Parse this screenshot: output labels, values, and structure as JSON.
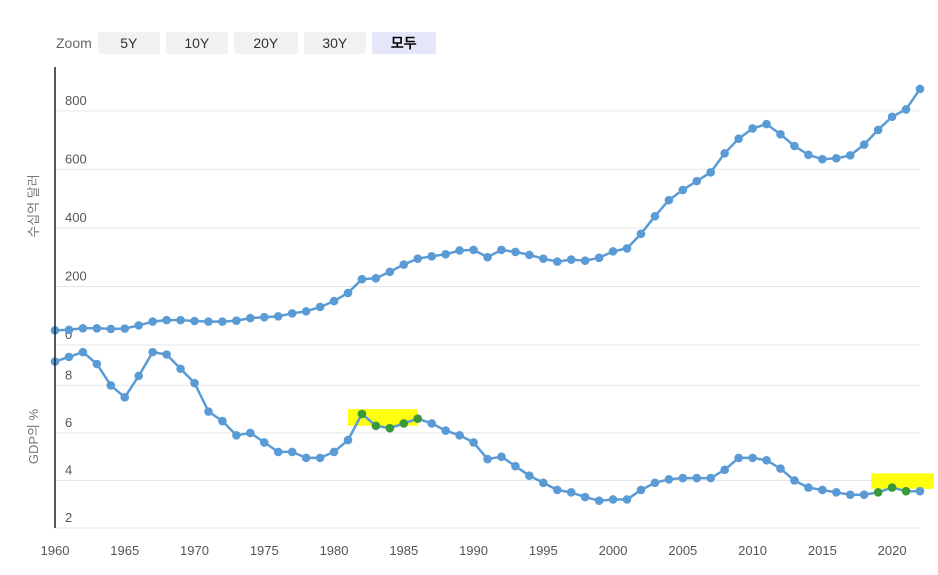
{
  "toolbar": {
    "zoom_label": "Zoom",
    "buttons": [
      "5Y",
      "10Y",
      "20Y",
      "30Y",
      "모두"
    ],
    "active": "모두"
  },
  "colors": {
    "series": "#5b9bd5",
    "highlight_point": "#3a9a3a",
    "highlight_fill": "#ffff00",
    "axis": "#222222",
    "grid": "#e6e6e6"
  },
  "chart_data": [
    {
      "type": "line",
      "ylabel": "수십억 달러",
      "ylim": [
        0,
        950
      ],
      "yticks": [
        0,
        200,
        400,
        600,
        800
      ],
      "grid": true,
      "x": [
        1960,
        1961,
        1962,
        1963,
        1964,
        1965,
        1966,
        1967,
        1968,
        1969,
        1970,
        1971,
        1972,
        1973,
        1974,
        1975,
        1976,
        1977,
        1978,
        1979,
        1980,
        1981,
        1982,
        1983,
        1984,
        1985,
        1986,
        1987,
        1988,
        1989,
        1990,
        1991,
        1992,
        1993,
        1994,
        1995,
        1996,
        1997,
        1998,
        1999,
        2000,
        2001,
        2002,
        2003,
        2004,
        2005,
        2006,
        2007,
        2008,
        2009,
        2010,
        2011,
        2012,
        2013,
        2014,
        2015,
        2016,
        2017,
        2018,
        2019,
        2020,
        2021,
        2022
      ],
      "series": [
        {
          "values": [
            50,
            52,
            57,
            57,
            55,
            56,
            67,
            80,
            85,
            85,
            82,
            80,
            80,
            83,
            92,
            95,
            98,
            108,
            115,
            130,
            150,
            178,
            225,
            228,
            250,
            275,
            295,
            303,
            310,
            323,
            325,
            300,
            325,
            318,
            308,
            295,
            285,
            292,
            288,
            298,
            320,
            330,
            380,
            440,
            495,
            530,
            560,
            590,
            655,
            705,
            740,
            755,
            720,
            680,
            650,
            635,
            638,
            648,
            685,
            735,
            780,
            805,
            875
          ]
        }
      ]
    },
    {
      "type": "line",
      "ylabel": "GDP의 %",
      "ylim": [
        2,
        9.7
      ],
      "yticks": [
        2,
        4,
        6,
        8
      ],
      "grid": true,
      "xlabel": "",
      "xticks": [
        1960,
        1965,
        1970,
        1975,
        1980,
        1985,
        1990,
        1995,
        2000,
        2005,
        2010,
        2015,
        2020
      ],
      "x": [
        1960,
        1961,
        1962,
        1963,
        1964,
        1965,
        1966,
        1967,
        1968,
        1969,
        1970,
        1971,
        1972,
        1973,
        1974,
        1975,
        1976,
        1977,
        1978,
        1979,
        1980,
        1981,
        1982,
        1983,
        1984,
        1985,
        1986,
        1987,
        1988,
        1989,
        1990,
        1991,
        1992,
        1993,
        1994,
        1995,
        1996,
        1997,
        1998,
        1999,
        2000,
        2001,
        2002,
        2003,
        2004,
        2005,
        2006,
        2007,
        2008,
        2009,
        2010,
        2011,
        2012,
        2013,
        2014,
        2015,
        2016,
        2017,
        2018,
        2019,
        2020,
        2021,
        2022
      ],
      "series": [
        {
          "values": [
            9.0,
            9.2,
            9.4,
            8.9,
            8.0,
            7.5,
            8.4,
            9.4,
            9.3,
            8.7,
            8.1,
            6.9,
            6.5,
            5.9,
            6.0,
            5.6,
            5.2,
            5.2,
            4.95,
            4.95,
            5.2,
            5.7,
            6.8,
            6.3,
            6.2,
            6.4,
            6.6,
            6.4,
            6.1,
            5.9,
            5.6,
            4.9,
            5.0,
            4.6,
            4.2,
            3.9,
            3.6,
            3.5,
            3.3,
            3.15,
            3.2,
            3.2,
            3.6,
            3.9,
            4.05,
            4.1,
            4.1,
            4.1,
            4.45,
            4.95,
            4.95,
            4.85,
            4.5,
            4.0,
            3.7,
            3.6,
            3.5,
            3.4,
            3.4,
            3.5,
            3.7,
            3.55,
            3.55
          ]
        }
      ],
      "highlights": [
        {
          "x_from": 1981,
          "x_to": 1986,
          "y_from": 6.3,
          "y_to": 7.0,
          "points": [
            1982,
            1983,
            1984,
            1985,
            1986
          ]
        },
        {
          "x_from": 2018.5,
          "x_to": 2023,
          "y_from": 3.65,
          "y_to": 4.3,
          "points": [
            2019,
            2020,
            2021
          ]
        }
      ]
    }
  ]
}
